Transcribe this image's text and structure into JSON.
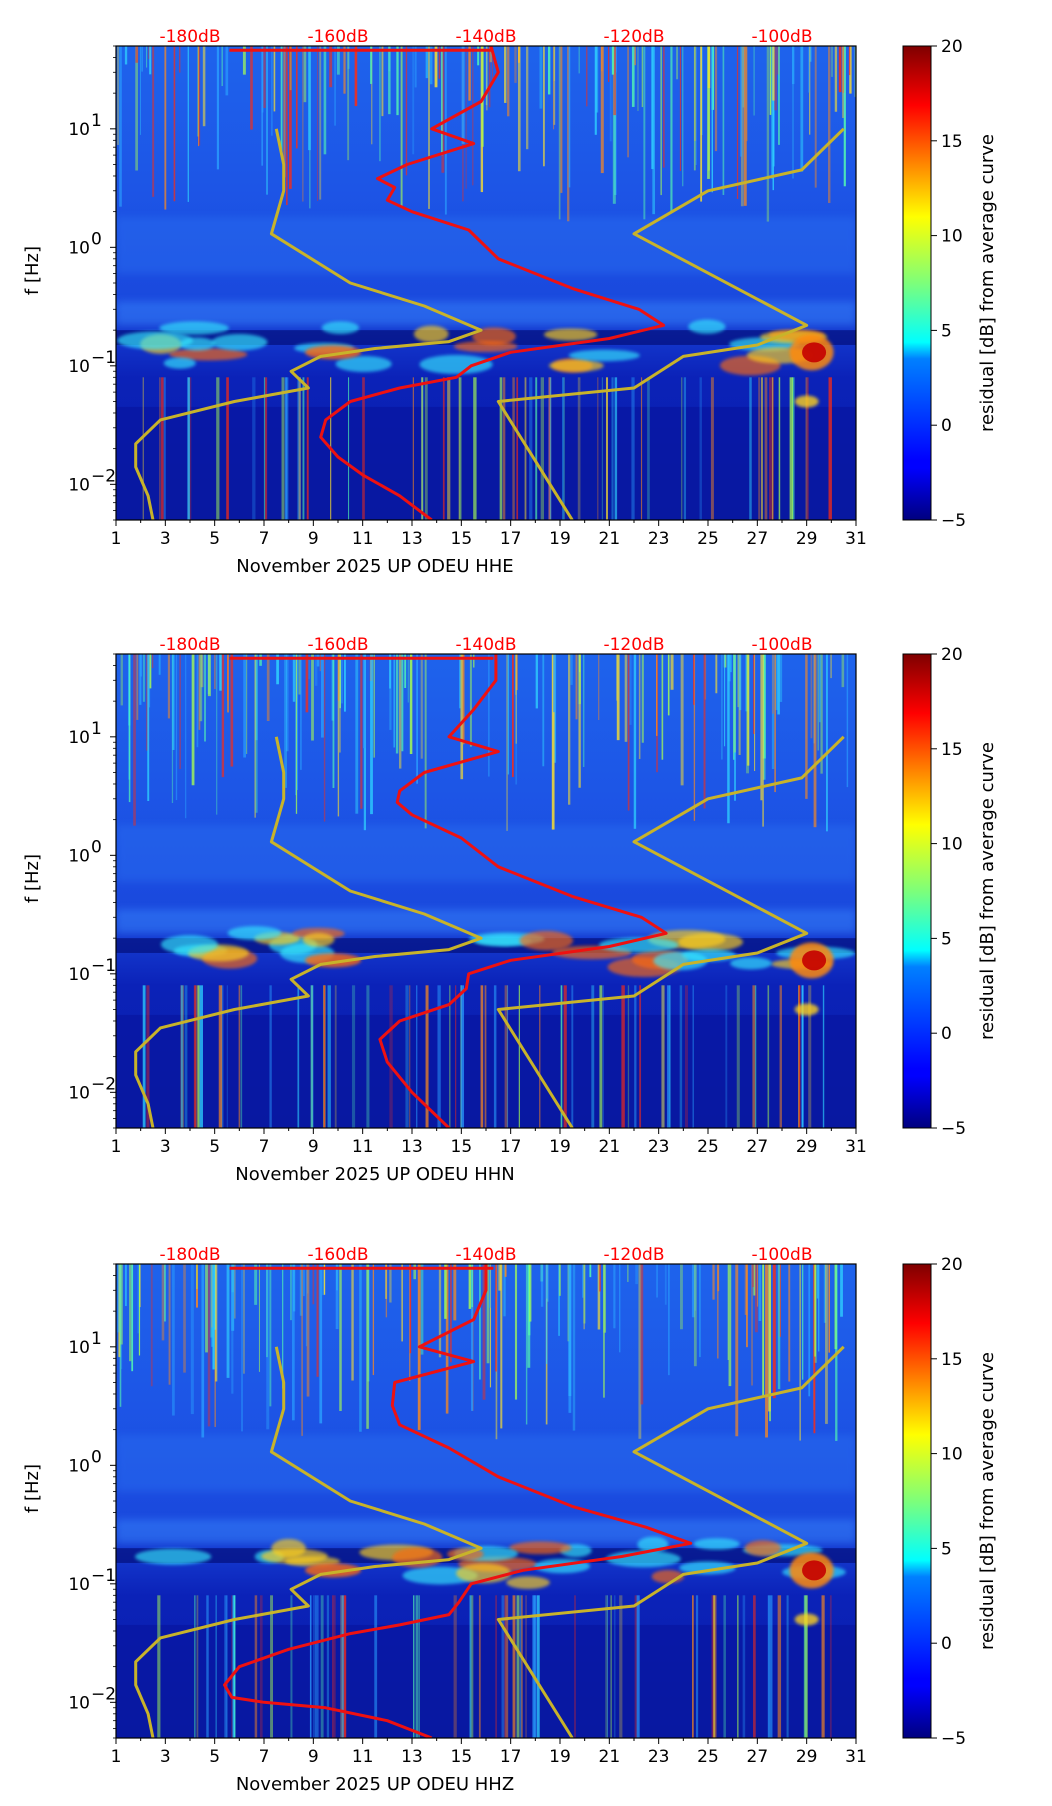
{
  "colors": {
    "psd_curve": "#ee1111",
    "model_curve": "#c8b32a",
    "db_labels": "#ff0000"
  },
  "chart_data": [
    {
      "type": "heatmap",
      "title": "",
      "xlabel": "November 2025 UP ODEU  HHE",
      "ylabel": "f [Hz]",
      "xlim": [
        1,
        31
      ],
      "xticks": [
        "1",
        "3",
        "5",
        "7",
        "9",
        "11",
        "13",
        "15",
        "17",
        "19",
        "21",
        "23",
        "25",
        "27",
        "29",
        "31"
      ],
      "yscale": "log",
      "ylim": [
        0.005,
        50
      ],
      "yticks": [
        {
          "value": 0.01,
          "base": "10",
          "exp": "−2"
        },
        {
          "value": 0.1,
          "base": "10",
          "exp": "−1"
        },
        {
          "value": 1,
          "base": "10",
          "exp": "0"
        },
        {
          "value": 10,
          "base": "10",
          "exp": "1"
        }
      ],
      "top_axis_labels": [
        {
          "label": "-180dB",
          "x": 4
        },
        {
          "label": "-160dB",
          "x": 10
        },
        {
          "label": "-140dB",
          "x": 16
        },
        {
          "label": "-120dB",
          "x": 22
        },
        {
          "label": "-100dB",
          "x": 28
        }
      ],
      "colorbar": {
        "label": "residual [dB] from average curve",
        "min": -5,
        "max": 20,
        "ticks": [
          "20",
          "15",
          "10",
          "5",
          "0",
          "−5"
        ]
      },
      "psd_curve": [
        [
          13.8,
          0.005
        ],
        [
          12.5,
          0.008
        ],
        [
          11,
          0.012
        ],
        [
          10,
          0.017
        ],
        [
          9.3,
          0.025
        ],
        [
          9.5,
          0.035
        ],
        [
          10.5,
          0.05
        ],
        [
          12.5,
          0.065
        ],
        [
          14.8,
          0.08
        ],
        [
          15.4,
          0.1
        ],
        [
          17,
          0.13
        ],
        [
          21,
          0.17
        ],
        [
          23.2,
          0.22
        ],
        [
          22.2,
          0.3
        ],
        [
          19.5,
          0.45
        ],
        [
          16.5,
          0.8
        ],
        [
          15.3,
          1.4
        ],
        [
          13,
          2
        ],
        [
          12,
          2.5
        ],
        [
          12.3,
          3.2
        ],
        [
          11.6,
          3.8
        ],
        [
          12.8,
          5
        ],
        [
          15.5,
          7.5
        ],
        [
          13.8,
          10
        ],
        [
          15.8,
          17
        ],
        [
          16.5,
          30
        ],
        [
          16.2,
          50
        ]
      ],
      "model_curves": [
        [
          [
            2.5,
            0.005
          ],
          [
            2.3,
            0.008
          ],
          [
            1.8,
            0.014
          ],
          [
            1.8,
            0.022
          ],
          [
            2.8,
            0.035
          ],
          [
            5.8,
            0.05
          ],
          [
            8.8,
            0.065
          ],
          [
            8.1,
            0.09
          ],
          [
            9.3,
            0.12
          ],
          [
            11.5,
            0.14
          ],
          [
            14.5,
            0.16
          ],
          [
            15.8,
            0.2
          ],
          [
            13.5,
            0.32
          ],
          [
            10.5,
            0.5
          ],
          [
            7.3,
            1.3
          ],
          [
            7.8,
            3
          ],
          [
            7.8,
            5
          ],
          [
            7.5,
            10
          ]
        ],
        [
          [
            19.5,
            0.005
          ],
          [
            16.5,
            0.05
          ],
          [
            22,
            0.065
          ],
          [
            24,
            0.12
          ],
          [
            27,
            0.15
          ],
          [
            29,
            0.22
          ],
          [
            22,
            1.3
          ],
          [
            25,
            3
          ],
          [
            28.8,
            4.5
          ],
          [
            30.5,
            10
          ]
        ]
      ]
    },
    {
      "type": "heatmap",
      "title": "",
      "xlabel": "November 2025 UP ODEU  HHN",
      "ylabel": "f [Hz]",
      "xlim": [
        1,
        31
      ],
      "xticks": [
        "1",
        "3",
        "5",
        "7",
        "9",
        "11",
        "13",
        "15",
        "17",
        "19",
        "21",
        "23",
        "25",
        "27",
        "29",
        "31"
      ],
      "yscale": "log",
      "ylim": [
        0.005,
        50
      ],
      "yticks": [
        {
          "value": 0.01,
          "base": "10",
          "exp": "−2"
        },
        {
          "value": 0.1,
          "base": "10",
          "exp": "−1"
        },
        {
          "value": 1,
          "base": "10",
          "exp": "0"
        },
        {
          "value": 10,
          "base": "10",
          "exp": "1"
        }
      ],
      "top_axis_labels": [
        {
          "label": "-180dB",
          "x": 4
        },
        {
          "label": "-160dB",
          "x": 10
        },
        {
          "label": "-140dB",
          "x": 16
        },
        {
          "label": "-120dB",
          "x": 22
        },
        {
          "label": "-100dB",
          "x": 28
        }
      ],
      "colorbar": {
        "label": "residual [dB] from average curve",
        "min": -5,
        "max": 20,
        "ticks": [
          "20",
          "15",
          "10",
          "5",
          "0",
          "−5"
        ]
      },
      "psd_curve": [
        [
          14.5,
          0.005
        ],
        [
          13,
          0.01
        ],
        [
          12,
          0.018
        ],
        [
          11.7,
          0.028
        ],
        [
          12.5,
          0.04
        ],
        [
          14.5,
          0.055
        ],
        [
          15.2,
          0.075
        ],
        [
          15.3,
          0.1
        ],
        [
          17,
          0.13
        ],
        [
          21,
          0.17
        ],
        [
          23.3,
          0.22
        ],
        [
          22.3,
          0.3
        ],
        [
          19.5,
          0.45
        ],
        [
          16.5,
          0.8
        ],
        [
          15,
          1.4
        ],
        [
          13,
          2.2
        ],
        [
          12.4,
          2.8
        ],
        [
          12.5,
          3.5
        ],
        [
          13.5,
          5
        ],
        [
          16.5,
          7.5
        ],
        [
          14.5,
          10
        ],
        [
          15.5,
          17
        ],
        [
          16.4,
          30
        ],
        [
          16.4,
          50
        ]
      ],
      "model_curves": [
        [
          [
            2.5,
            0.005
          ],
          [
            2.3,
            0.008
          ],
          [
            1.8,
            0.014
          ],
          [
            1.8,
            0.022
          ],
          [
            2.8,
            0.035
          ],
          [
            5.8,
            0.05
          ],
          [
            8.8,
            0.065
          ],
          [
            8.1,
            0.09
          ],
          [
            9.3,
            0.12
          ],
          [
            11.5,
            0.14
          ],
          [
            14.5,
            0.16
          ],
          [
            15.8,
            0.2
          ],
          [
            13.5,
            0.32
          ],
          [
            10.5,
            0.5
          ],
          [
            7.3,
            1.3
          ],
          [
            7.8,
            3
          ],
          [
            7.8,
            5
          ],
          [
            7.5,
            10
          ]
        ],
        [
          [
            19.5,
            0.005
          ],
          [
            16.5,
            0.05
          ],
          [
            22,
            0.065
          ],
          [
            24,
            0.12
          ],
          [
            27,
            0.15
          ],
          [
            29,
            0.22
          ],
          [
            22,
            1.3
          ],
          [
            25,
            3
          ],
          [
            28.8,
            4.5
          ],
          [
            30.5,
            10
          ]
        ]
      ]
    },
    {
      "type": "heatmap",
      "title": "",
      "xlabel": "November 2025 UP ODEU  HHZ",
      "ylabel": "f [Hz]",
      "xlim": [
        1,
        31
      ],
      "xticks": [
        "1",
        "3",
        "5",
        "7",
        "9",
        "11",
        "13",
        "15",
        "17",
        "19",
        "21",
        "23",
        "25",
        "27",
        "29",
        "31"
      ],
      "yscale": "log",
      "ylim": [
        0.005,
        50
      ],
      "yticks": [
        {
          "value": 0.01,
          "base": "10",
          "exp": "−2"
        },
        {
          "value": 0.1,
          "base": "10",
          "exp": "−1"
        },
        {
          "value": 1,
          "base": "10",
          "exp": "0"
        },
        {
          "value": 10,
          "base": "10",
          "exp": "1"
        }
      ],
      "top_axis_labels": [
        {
          "label": "-180dB",
          "x": 4
        },
        {
          "label": "-160dB",
          "x": 10
        },
        {
          "label": "-140dB",
          "x": 16
        },
        {
          "label": "-120dB",
          "x": 22
        },
        {
          "label": "-100dB",
          "x": 28
        }
      ],
      "colorbar": {
        "label": "residual [dB] from average curve",
        "min": -5,
        "max": 20,
        "ticks": [
          "20",
          "15",
          "10",
          "5",
          "0",
          "−5"
        ]
      },
      "psd_curve": [
        [
          13.8,
          0.005
        ],
        [
          12,
          0.007
        ],
        [
          9.5,
          0.009
        ],
        [
          7,
          0.01
        ],
        [
          5.7,
          0.011
        ],
        [
          5.4,
          0.014
        ],
        [
          6,
          0.02
        ],
        [
          8,
          0.028
        ],
        [
          10.5,
          0.038
        ],
        [
          12.5,
          0.045
        ],
        [
          14.5,
          0.055
        ],
        [
          14.9,
          0.07
        ],
        [
          15.4,
          0.1
        ],
        [
          17.5,
          0.13
        ],
        [
          21.5,
          0.17
        ],
        [
          24.3,
          0.22
        ],
        [
          22.5,
          0.3
        ],
        [
          19.5,
          0.45
        ],
        [
          16.5,
          0.8
        ],
        [
          14.5,
          1.4
        ],
        [
          12.5,
          2.2
        ],
        [
          12.2,
          3.2
        ],
        [
          12.3,
          5
        ],
        [
          15.5,
          7.5
        ],
        [
          13.3,
          10
        ],
        [
          15.5,
          17
        ],
        [
          16,
          30
        ],
        [
          16,
          50
        ]
      ],
      "model_curves": [
        [
          [
            2.5,
            0.005
          ],
          [
            2.3,
            0.008
          ],
          [
            1.8,
            0.014
          ],
          [
            1.8,
            0.022
          ],
          [
            2.8,
            0.035
          ],
          [
            5.8,
            0.05
          ],
          [
            8.8,
            0.065
          ],
          [
            8.1,
            0.09
          ],
          [
            9.3,
            0.12
          ],
          [
            11.5,
            0.14
          ],
          [
            14.5,
            0.16
          ],
          [
            15.8,
            0.2
          ],
          [
            13.5,
            0.32
          ],
          [
            10.5,
            0.5
          ],
          [
            7.3,
            1.3
          ],
          [
            7.8,
            3
          ],
          [
            7.8,
            5
          ],
          [
            7.5,
            10
          ]
        ],
        [
          [
            19.5,
            0.005
          ],
          [
            16.5,
            0.05
          ],
          [
            22,
            0.065
          ],
          [
            24,
            0.12
          ],
          [
            27,
            0.15
          ],
          [
            29,
            0.22
          ],
          [
            22,
            1.3
          ],
          [
            25,
            3
          ],
          [
            28.8,
            4.5
          ],
          [
            30.5,
            10
          ]
        ]
      ]
    }
  ]
}
